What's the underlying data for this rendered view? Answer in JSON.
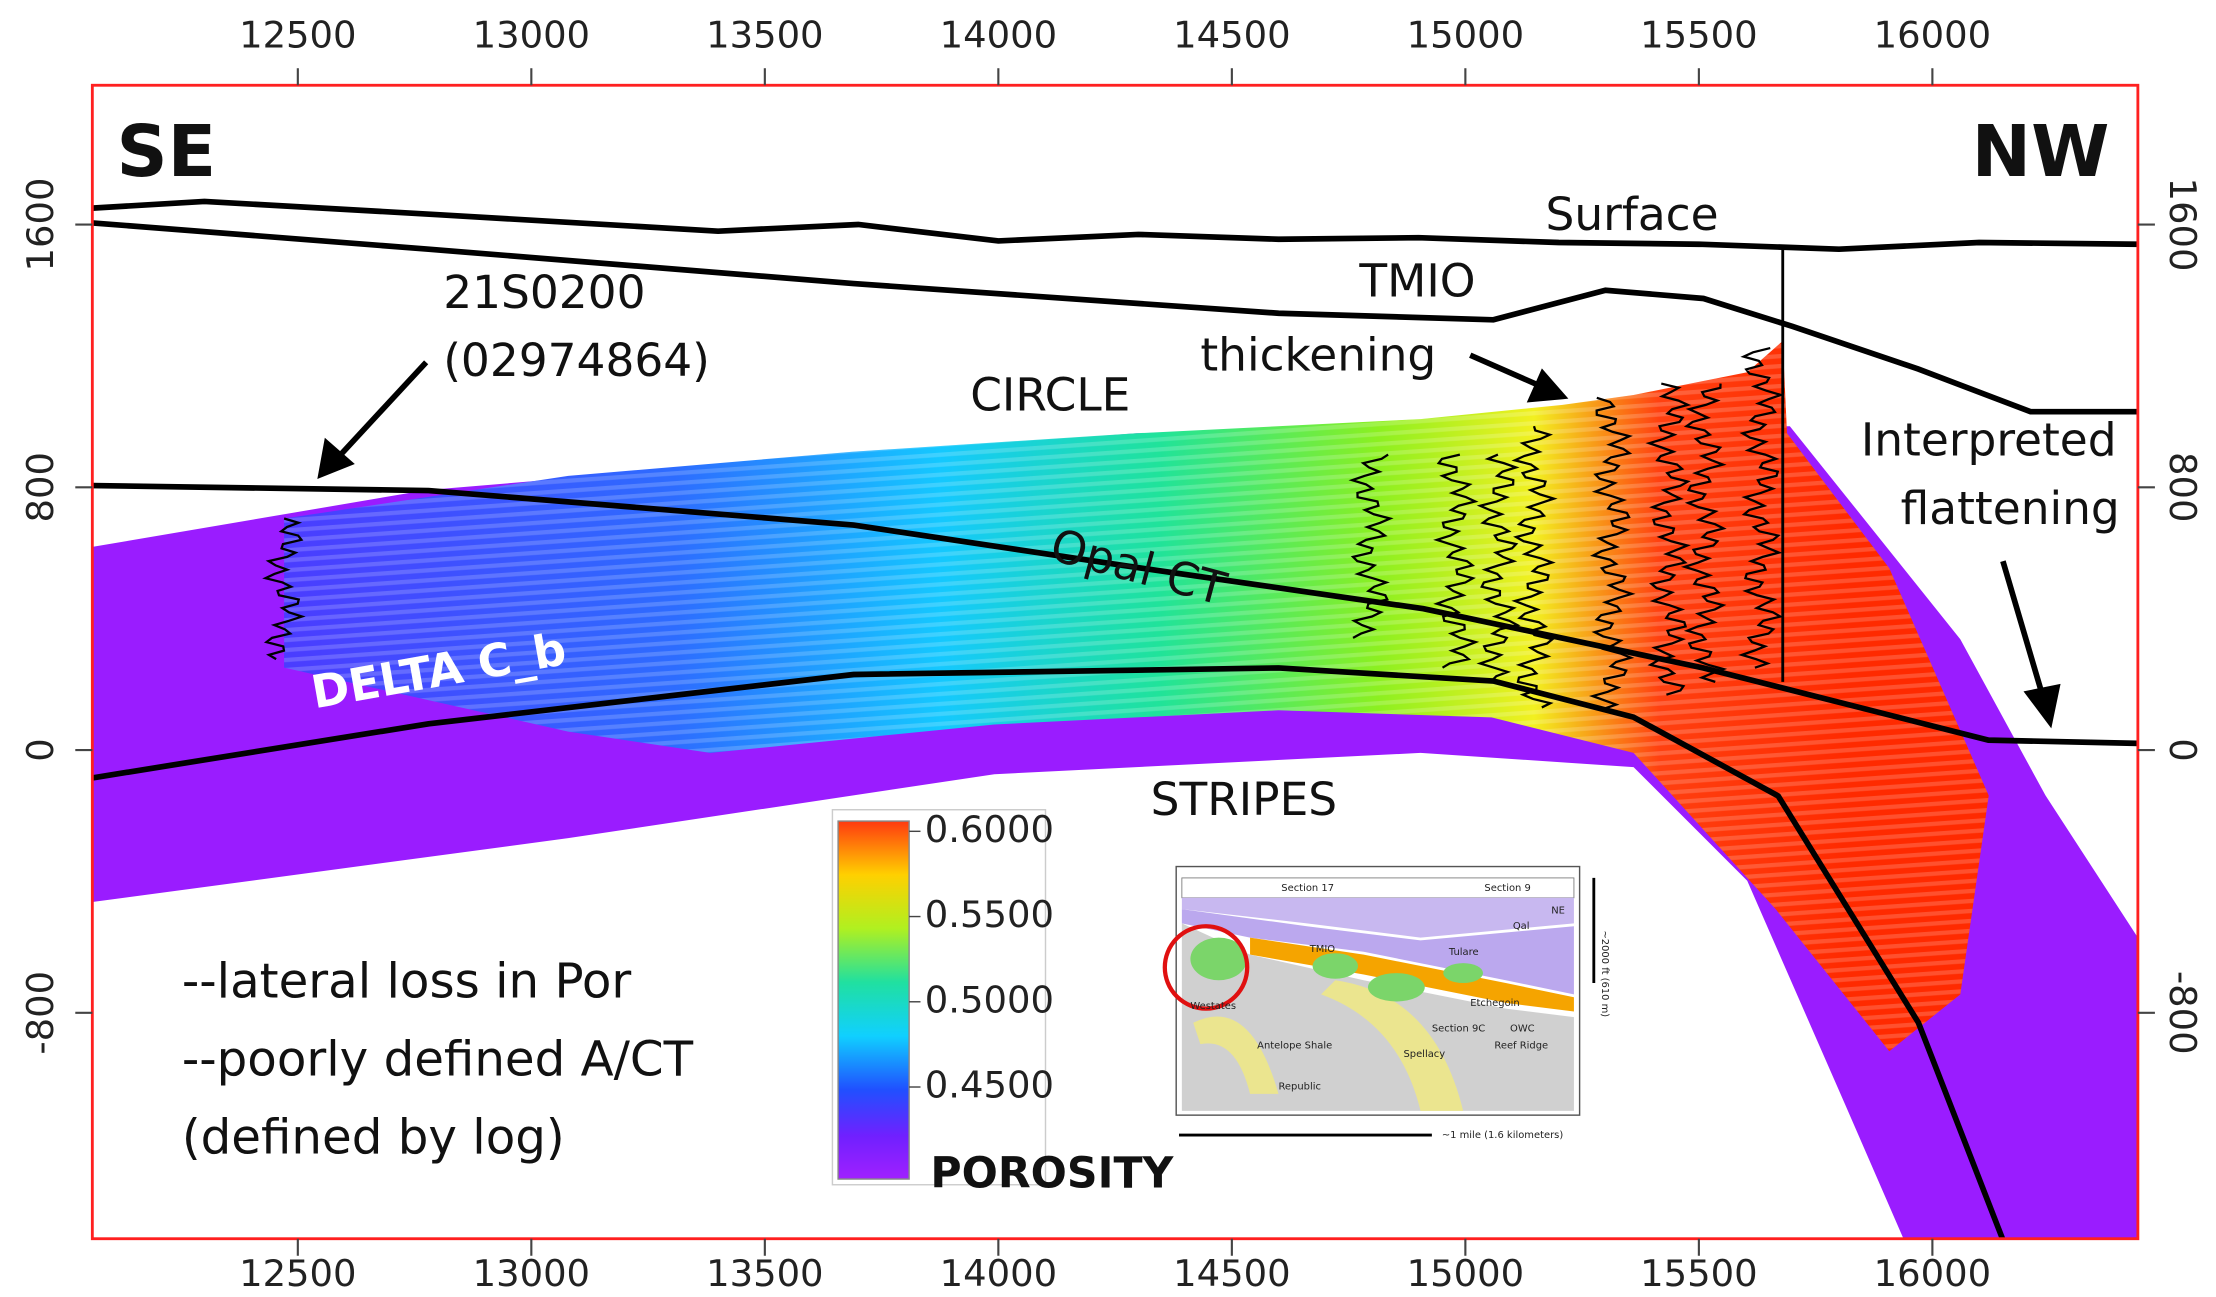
{
  "chart_data": {
    "type": "cross-section",
    "xlim": [
      12060,
      16440
    ],
    "xticks": [
      12500,
      13000,
      13500,
      14000,
      14500,
      15000,
      15500,
      16000
    ],
    "ylim": [
      -1488,
      2024
    ],
    "yticks": [
      -800,
      0,
      800,
      1600
    ],
    "series": [
      {
        "name": "Surface",
        "color": "#000000",
        "x": [
          12060,
          12300,
          12800,
          13400,
          13700,
          14000,
          14300,
          14600,
          14900,
          15200,
          15500,
          15800,
          16100,
          16440
        ],
        "y": [
          1650,
          1670,
          1630,
          1580,
          1600,
          1550,
          1570,
          1555,
          1560,
          1545,
          1540,
          1525,
          1545,
          1540
        ]
      },
      {
        "name": "TMIO",
        "color": "#000000",
        "x": [
          12060,
          12780,
          13690,
          14600,
          15060,
          15300,
          15510,
          15700,
          15970,
          16210,
          16440
        ],
        "y": [
          1605,
          1525,
          1420,
          1330,
          1310,
          1400,
          1375,
          1290,
          1160,
          1030,
          1030
        ]
      },
      {
        "name": "Opal CT",
        "color": "#000000",
        "x": [
          12060,
          12780,
          13690,
          14300,
          14910,
          15510,
          16120,
          16440
        ],
        "y": [
          805,
          790,
          685,
          555,
          430,
          250,
          30,
          20
        ]
      },
      {
        "name": "DELTA C_b",
        "color": "#000000",
        "x": [
          12060,
          12780,
          13690,
          14600,
          15060,
          15360,
          15670,
          15970,
          16150
        ],
        "y": [
          -85,
          80,
          230,
          250,
          210,
          100,
          -140,
          -830,
          -1488
        ]
      }
    ],
    "annotations": {
      "left": "SE",
      "right": "NW",
      "well": [
        "21S0200",
        "(02974864)"
      ],
      "thickening": "thickening",
      "circle": "CIRCLE",
      "stripes": "STRIPES",
      "flattening": [
        "Interpreted",
        "flattening"
      ],
      "notes": [
        "--lateral loss in Por",
        "--poorly defined A/CT",
        "(defined by log)"
      ]
    },
    "colorbar": {
      "label": "POROSITY",
      "lim": [
        0.396,
        0.606
      ],
      "ticks": [
        {
          "value": 0.6,
          "label": "0.6000"
        },
        {
          "value": 0.55,
          "label": "0.5500"
        },
        {
          "value": 0.5,
          "label": "0.5000"
        },
        {
          "value": 0.45,
          "label": "0.4500"
        }
      ]
    },
    "inset": {
      "labels": [
        "Section 17",
        "Section 9",
        "NE",
        "Qal",
        "Tulare",
        "TMIO",
        "Etchegoin",
        "Westates",
        "Section 9C",
        "OWC",
        "Antelope Shale",
        "Spellacy",
        "Reef Ridge",
        "Republic",
        "~2000 ft (610 m)",
        "~1 mile (1.6 kilometers)"
      ]
    }
  }
}
